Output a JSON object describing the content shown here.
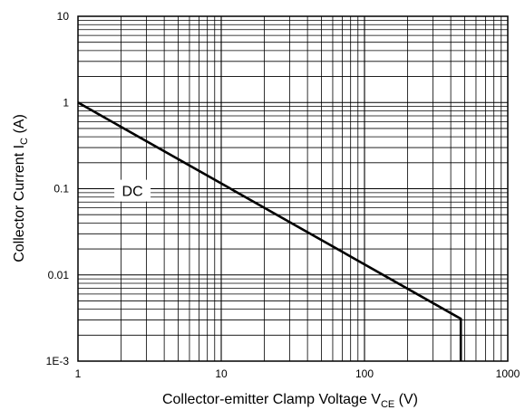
{
  "chart_data": {
    "type": "line",
    "title": "",
    "xlabel": {
      "main": "Collector-emitter Clamp Voltage V",
      "sub": "CE",
      "suffix": " (V)"
    },
    "ylabel": {
      "main": "Collector Current I",
      "sub": "C",
      "suffix": " (A)"
    },
    "xscale": "log",
    "yscale": "log",
    "xlim": [
      1,
      1000
    ],
    "ylim": [
      0.001,
      10
    ],
    "grid": true,
    "x_tick_labels": [
      "1",
      "10",
      "100",
      "1000"
    ],
    "y_tick_labels": [
      "1E-3",
      "0.01",
      "0.1",
      "1",
      "10"
    ],
    "series": [
      {
        "name": "",
        "x": [
          1,
          470,
          470
        ],
        "y": [
          1,
          0.0031,
          0.001
        ]
      }
    ],
    "annotations": [
      {
        "text": "DC",
        "x": 2.4,
        "y": 0.095
      }
    ]
  }
}
